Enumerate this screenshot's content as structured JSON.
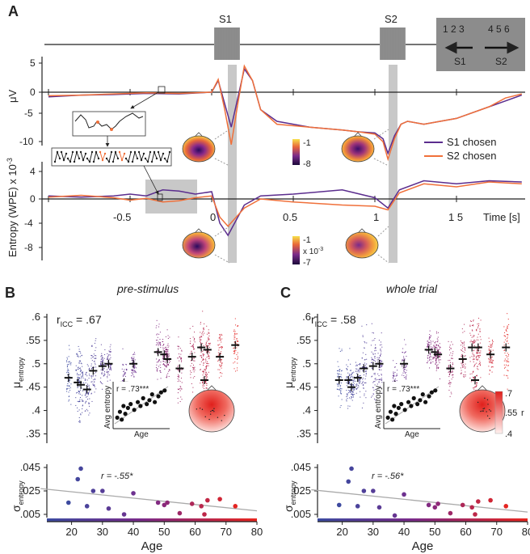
{
  "panel_a": {
    "label": "A",
    "s1": "S1",
    "s2": "S2",
    "keys_left": "1 2 3",
    "keys_right": "4 5 6",
    "arrow_left": "S1",
    "arrow_right": "S2",
    "erp_ylabel": "μV",
    "erp_ticks": [
      "5",
      "0",
      "-5",
      "-10"
    ],
    "ent_ylabel": "Entropy (WPE) x 10",
    "ent_ylabel_exp": "-3",
    "ent_ticks": [
      "4",
      "0",
      "-4",
      "-8"
    ],
    "time_ticks": [
      "-0.5",
      "0",
      "0.5",
      "1",
      "1 5"
    ],
    "time_label": "Time [s]",
    "legend": [
      {
        "label": "S1 chosen",
        "color": "#5b2d8e"
      },
      {
        "label": "S2 chosen",
        "color": "#f0703a"
      }
    ],
    "cbar1": {
      "max": "-1",
      "min": "-8"
    },
    "cbar2": {
      "max": "-1",
      "unit": "x 10",
      "unit_exp": "-3",
      "min": "-7"
    }
  },
  "panel_b": {
    "label": "B",
    "title": "pre-stimulus",
    "ricc": ".67",
    "r_inset": "r = .73***",
    "inset_xlabel": "Age",
    "inset_ylabel": "Avg entropy",
    "r_sigma": "r = -.55*"
  },
  "panel_c": {
    "label": "C",
    "title": "whole trial",
    "ricc": ".58",
    "r_inset": "r = .73***",
    "inset_xlabel": "Age",
    "inset_ylabel": "Avg entropy",
    "r_sigma": "r = -.56*",
    "cbar": {
      "max": ".7",
      "mid": ".55",
      "min": ".4",
      "label": "r"
    }
  },
  "shared": {
    "r_prefix": "r",
    "r_sub": "ICC",
    "r_eq": " = ",
    "mu_label": "μ",
    "mu_sub": "entropy",
    "sigma_label": "σ",
    "sigma_sub": "entropy",
    "mu_ticks": [
      ".6",
      ".55",
      ".5",
      ".45",
      ".4",
      ".35"
    ],
    "sigma_ticks": [
      ".045",
      ".025",
      ".005"
    ],
    "age_ticks": [
      "20",
      "30",
      "40",
      "50",
      "60",
      "70",
      "80"
    ],
    "age_label": "Age"
  },
  "chart_data": [
    {
      "type": "line",
      "title": "ERP (μV)",
      "xlabel": "Time [s]",
      "ylabel": "μV",
      "xlim": [
        -1.0,
        1.9
      ],
      "ylim": [
        -12,
        6
      ],
      "series": [
        {
          "name": "S1 chosen",
          "x": [
            -1.0,
            -0.8,
            -0.6,
            -0.4,
            -0.2,
            0.0,
            0.04,
            0.08,
            0.12,
            0.16,
            0.2,
            0.25,
            0.3,
            0.4,
            0.6,
            0.8,
            0.9,
            1.0,
            1.05,
            1.08,
            1.12,
            1.16,
            1.2,
            1.3,
            1.5,
            1.7,
            1.8,
            1.9
          ],
          "values": [
            -0.8,
            -0.5,
            -0.4,
            -0.2,
            -0.3,
            0.0,
            2.0,
            -2.0,
            -6.0,
            -1.0,
            4.0,
            2.0,
            -3.0,
            -5.0,
            -6.0,
            -6.5,
            -6.8,
            -7.0,
            -8.0,
            -10.5,
            -7.5,
            -5.5,
            -5.0,
            -5.5,
            -4.5,
            -2.5,
            -1.5,
            -0.5
          ]
        },
        {
          "name": "S2 chosen",
          "x": [
            -1.0,
            -0.8,
            -0.6,
            -0.4,
            -0.2,
            0.0,
            0.04,
            0.08,
            0.12,
            0.16,
            0.2,
            0.25,
            0.3,
            0.4,
            0.6,
            0.8,
            0.9,
            1.0,
            1.05,
            1.08,
            1.12,
            1.16,
            1.2,
            1.3,
            1.5,
            1.7,
            1.8,
            1.9
          ],
          "values": [
            -0.6,
            -0.5,
            -0.3,
            -0.1,
            -0.2,
            0.0,
            2.2,
            -3.0,
            -9.0,
            -2.0,
            4.5,
            2.0,
            -3.0,
            -5.5,
            -6.0,
            -6.5,
            -6.8,
            -7.2,
            -8.5,
            -11.5,
            -8.0,
            -5.5,
            -5.0,
            -5.5,
            -4.5,
            -2.5,
            -1.0,
            -0.3
          ]
        }
      ]
    },
    {
      "type": "line",
      "title": "Entropy (WPE) x 10^-3",
      "xlabel": "Time [s]",
      "ylabel": "Entropy (WPE) x 10^-3",
      "xlim": [
        -1.0,
        1.9
      ],
      "ylim": [
        -10,
        5
      ],
      "series": [
        {
          "name": "S1 chosen",
          "x": [
            -1.0,
            -0.8,
            -0.6,
            -0.5,
            -0.4,
            -0.3,
            -0.2,
            -0.1,
            0.0,
            0.05,
            0.1,
            0.15,
            0.2,
            0.3,
            0.5,
            0.8,
            1.0,
            1.08,
            1.15,
            1.3,
            1.5,
            1.7,
            1.9
          ],
          "values": [
            0.5,
            0.3,
            0.5,
            0.8,
            0.5,
            1.5,
            1.3,
            0.8,
            1.2,
            -4.0,
            -6.0,
            -3.5,
            -1.0,
            0.5,
            0.8,
            1.5,
            0.2,
            -1.5,
            1.5,
            3.0,
            2.5,
            3.0,
            2.8
          ]
        },
        {
          "name": "S2 chosen",
          "x": [
            -1.0,
            -0.8,
            -0.6,
            -0.5,
            -0.4,
            -0.3,
            -0.2,
            -0.1,
            0.0,
            0.05,
            0.1,
            0.15,
            0.2,
            0.3,
            0.5,
            0.8,
            1.0,
            1.08,
            1.15,
            1.3,
            1.5,
            1.7,
            1.9
          ],
          "values": [
            0.3,
            0.6,
            0.2,
            -0.2,
            0.1,
            -0.5,
            -0.3,
            0.2,
            0.5,
            -3.0,
            -4.5,
            -3.0,
            -1.5,
            0.0,
            -0.5,
            -1.0,
            -1.2,
            -1.8,
            1.0,
            2.5,
            2.0,
            2.8,
            2.5
          ]
        }
      ]
    },
    {
      "type": "scatter",
      "title": "pre-stimulus: μ entropy by age",
      "xlabel": "Age",
      "ylabel": "μ entropy",
      "xlim": [
        10,
        80
      ],
      "ylim": [
        0.32,
        0.6
      ],
      "x": [
        19,
        22,
        23,
        25,
        27,
        30,
        32,
        37,
        40,
        48,
        50,
        51,
        55,
        59,
        62,
        63,
        64,
        68,
        73
      ],
      "values": [
        0.47,
        0.46,
        0.455,
        0.445,
        0.485,
        0.495,
        0.5,
        0.46,
        0.5,
        0.525,
        0.52,
        0.51,
        0.49,
        0.515,
        0.535,
        0.465,
        0.53,
        0.515,
        0.54
      ]
    },
    {
      "type": "scatter",
      "title": "pre-stimulus: σ entropy by age",
      "xlabel": "Age",
      "ylabel": "σ entropy",
      "xlim": [
        10,
        80
      ],
      "ylim": [
        0.003,
        0.05
      ],
      "x": [
        19,
        22,
        23,
        25,
        27,
        30,
        32,
        37,
        40,
        48,
        50,
        51,
        55,
        59,
        62,
        63,
        64,
        68,
        73
      ],
      "values": [
        0.015,
        0.035,
        0.044,
        0.012,
        0.025,
        0.025,
        0.01,
        0.005,
        0.023,
        0.015,
        0.013,
        0.015,
        0.006,
        0.014,
        0.012,
        0.005,
        0.017,
        0.018,
        0.012
      ],
      "trend": {
        "x": [
          10,
          80
        ],
        "y": [
          0.027,
          0.008
        ]
      }
    },
    {
      "type": "scatter",
      "title": "whole trial: μ entropy by age",
      "xlabel": "Age",
      "ylabel": "μ entropy",
      "xlim": [
        10,
        80
      ],
      "ylim": [
        0.32,
        0.6
      ],
      "x": [
        19,
        22,
        23,
        25,
        27,
        30,
        32,
        37,
        40,
        48,
        50,
        51,
        55,
        59,
        62,
        63,
        64,
        68,
        73
      ],
      "values": [
        0.465,
        0.465,
        0.45,
        0.47,
        0.49,
        0.495,
        0.5,
        0.455,
        0.5,
        0.53,
        0.525,
        0.52,
        0.49,
        0.51,
        0.535,
        0.465,
        0.535,
        0.52,
        0.535
      ]
    },
    {
      "type": "scatter",
      "title": "whole trial: σ entropy by age",
      "xlabel": "Age",
      "ylabel": "σ entropy",
      "xlim": [
        10,
        80
      ],
      "ylim": [
        0.003,
        0.05
      ],
      "x": [
        19,
        22,
        23,
        25,
        27,
        30,
        32,
        37,
        40,
        48,
        50,
        51,
        55,
        59,
        62,
        63,
        64,
        68,
        73
      ],
      "values": [
        0.013,
        0.033,
        0.044,
        0.012,
        0.025,
        0.025,
        0.011,
        0.004,
        0.022,
        0.013,
        0.011,
        0.014,
        0.006,
        0.013,
        0.011,
        0.005,
        0.016,
        0.017,
        0.012
      ],
      "trend": {
        "x": [
          10,
          80
        ],
        "y": [
          0.026,
          0.007
        ]
      }
    },
    {
      "type": "scatter",
      "title": "inset: Avg entropy by age",
      "xlabel": "Age",
      "ylabel": "Avg entropy",
      "x": [
        19,
        22,
        24,
        26,
        28,
        31,
        34,
        38,
        42,
        45,
        48,
        52,
        55,
        58,
        61,
        65,
        68,
        72
      ],
      "values": [
        0.2,
        0.35,
        0.15,
        0.5,
        0.3,
        0.45,
        0.55,
        0.4,
        0.6,
        0.5,
        0.7,
        0.55,
        0.65,
        0.8,
        0.6,
        0.75,
        0.85,
        0.9
      ]
    }
  ]
}
